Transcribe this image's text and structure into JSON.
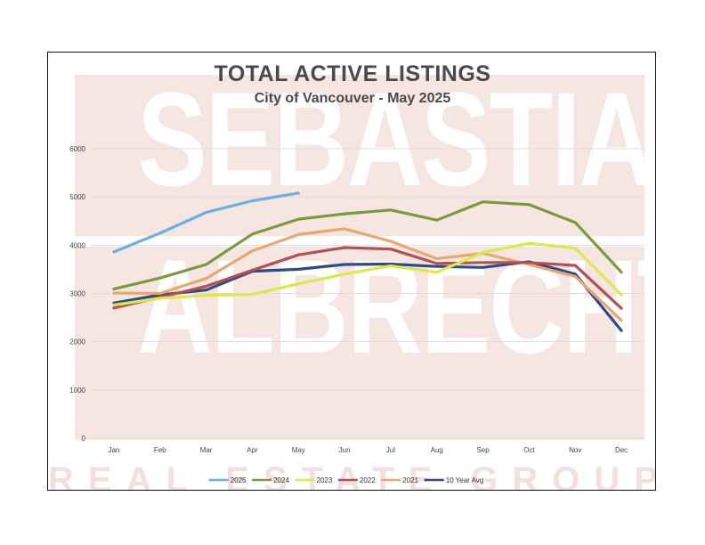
{
  "watermark": {
    "line1": "SEBASTIAN",
    "line2": "ALBRECHT",
    "line3": "REAL ESTATE GROUP"
  },
  "chart_data": {
    "type": "line",
    "title": "TOTAL ACTIVE LISTINGS",
    "subtitle": "City of Vancouver - May 2025",
    "xlabel": "",
    "ylabel": "",
    "ylim": [
      0,
      6000
    ],
    "yticks": [
      0,
      1000,
      2000,
      3000,
      4000,
      5000,
      6000
    ],
    "grid": true,
    "legend_position": "bottom",
    "categories": [
      "Jan",
      "Feb",
      "Mar",
      "Apr",
      "May",
      "Jun",
      "Jul",
      "Aug",
      "Sep",
      "Oct",
      "Nov",
      "Dec"
    ],
    "series": [
      {
        "name": "2025",
        "color": "#6aaee2",
        "values": [
          3860,
          4250,
          4680,
          4920,
          5080,
          null,
          null,
          null,
          null,
          null,
          null,
          null
        ]
      },
      {
        "name": "2024",
        "color": "#7a9a3e",
        "values": [
          3090,
          3320,
          3600,
          4230,
          4540,
          4650,
          4730,
          4520,
          4900,
          4840,
          4470,
          3440
        ]
      },
      {
        "name": "2023",
        "color": "#dde84a",
        "values": [
          2760,
          2900,
          2960,
          2980,
          3200,
          3400,
          3570,
          3440,
          3850,
          4040,
          3940,
          2970
        ]
      },
      {
        "name": "2022",
        "color": "#b55050",
        "values": [
          2700,
          2920,
          3150,
          3480,
          3800,
          3950,
          3920,
          3620,
          3640,
          3640,
          3580,
          2690
        ]
      },
      {
        "name": "2021",
        "color": "#e6a86e",
        "values": [
          3010,
          3000,
          3310,
          3880,
          4220,
          4340,
          4080,
          3720,
          3830,
          3600,
          3350,
          2440
        ]
      },
      {
        "name": "10 Year Avg",
        "color": "#2c4a8c",
        "values": [
          2800,
          2970,
          3070,
          3460,
          3500,
          3600,
          3610,
          3560,
          3540,
          3660,
          3400,
          2230
        ]
      }
    ]
  }
}
